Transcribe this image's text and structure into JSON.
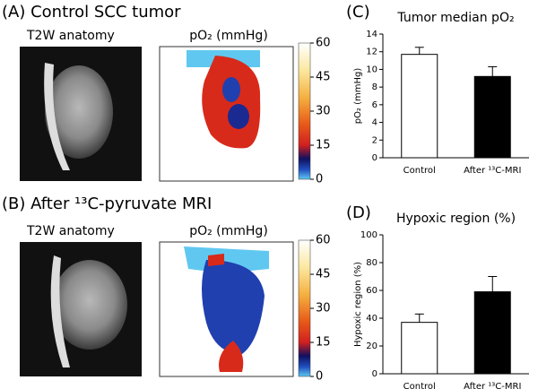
{
  "panels": [
    {
      "label": "(A) Control SCC tumor",
      "anatomy_title": "T2W anatomy",
      "map_title": "pO₂ (mmHg)"
    },
    {
      "label": "(B) After ¹³C-pyruvate MRI",
      "anatomy_title": "T2W anatomy",
      "map_title": "pO₂ (mmHg)"
    }
  ],
  "colorbar": {
    "lim": [
      0,
      60
    ],
    "ticks": [
      0,
      15,
      30,
      45,
      60
    ]
  },
  "chart_data": [
    {
      "type": "bar",
      "panel_label": "(C)",
      "title": "Tumor median pO₂",
      "ylabel": "pO₂ (mmHg)",
      "categories": [
        "Control",
        "After ¹³C-MRI"
      ],
      "values": [
        11.7,
        9.2
      ],
      "errors": [
        0.8,
        1.1
      ],
      "colors": [
        "#ffffff",
        "#000000"
      ],
      "ylim": [
        0,
        14
      ],
      "yticks": [
        0,
        2,
        4,
        6,
        8,
        10,
        12,
        14
      ]
    },
    {
      "type": "bar",
      "panel_label": "(D)",
      "title": "Hypoxic region (%)",
      "ylabel": "Hypoxic region (%)",
      "categories": [
        "Control",
        "After ¹³C-MRI"
      ],
      "values": [
        37,
        59
      ],
      "errors": [
        6,
        11
      ],
      "colors": [
        "#ffffff",
        "#000000"
      ],
      "ylim": [
        0,
        100
      ],
      "yticks": [
        0,
        20,
        40,
        60,
        80,
        100
      ]
    }
  ]
}
